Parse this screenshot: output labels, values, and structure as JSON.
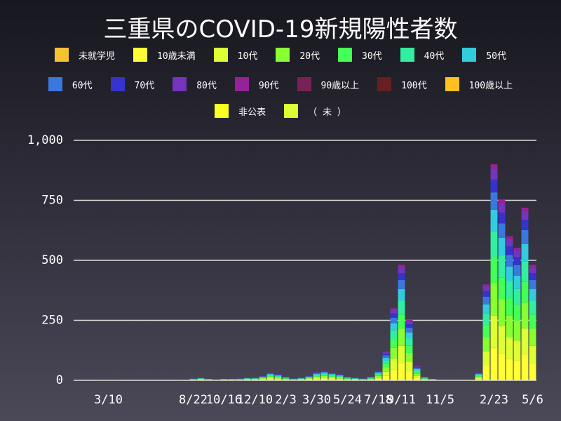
{
  "chart_data": {
    "type": "bar",
    "stacked": true,
    "title": "三重県のCOVID-19新規陽性者数",
    "categories": [
      null,
      null,
      null,
      null,
      "3/10",
      null,
      null,
      null,
      null,
      null,
      null,
      null,
      null,
      null,
      null,
      "8/22",
      null,
      null,
      null,
      "10/16",
      null,
      null,
      null,
      "12/10",
      null,
      null,
      null,
      "2/3",
      null,
      null,
      null,
      "3/30",
      null,
      null,
      null,
      "5/24",
      null,
      null,
      null,
      "7/18",
      null,
      null,
      "9/11",
      null,
      null,
      null,
      null,
      "11/5",
      null,
      null,
      null,
      null,
      null,
      null,
      "2/23",
      null,
      null,
      null,
      null,
      "5/6"
    ],
    "series": [
      {
        "name": "未就学児",
        "color": "#f7c232",
        "values": [
          0,
          0,
          0,
          0,
          0,
          0,
          0,
          0,
          0,
          0,
          0,
          0,
          0,
          0,
          0,
          0,
          0,
          0,
          0,
          0,
          0,
          0,
          0,
          0,
          0,
          0,
          0,
          0,
          0,
          0,
          0,
          0,
          0,
          0,
          0,
          0,
          0,
          0,
          0,
          0,
          0,
          0,
          0,
          0,
          0,
          0,
          0,
          0,
          0,
          0,
          0,
          0,
          0,
          0,
          0,
          0,
          0,
          0,
          0,
          0
        ]
      },
      {
        "name": "10歳未満",
        "color": "#ffff33",
        "values": [
          0,
          0,
          0,
          0,
          0,
          0,
          0,
          0,
          0,
          0,
          0,
          0,
          0,
          0,
          0,
          1,
          2,
          1,
          1,
          1,
          1,
          1,
          2,
          2,
          3,
          5,
          4,
          2,
          1,
          2,
          3,
          5,
          6,
          5,
          4,
          2,
          2,
          1,
          2,
          6,
          18,
          45,
          72,
          38,
          9,
          2,
          1,
          0,
          0,
          0,
          0,
          0,
          5,
          60,
          135,
          113,
          90,
          83,
          108,
          72
        ]
      },
      {
        "name": "10代",
        "color": "#ddff33",
        "values": [
          0,
          0,
          0,
          0,
          0,
          0,
          0,
          0,
          0,
          0,
          0,
          0,
          0,
          0,
          0,
          1,
          2,
          1,
          1,
          1,
          1,
          1,
          2,
          2,
          3,
          5,
          4,
          2,
          1,
          2,
          3,
          5,
          6,
          5,
          4,
          2,
          2,
          1,
          2,
          6,
          18,
          45,
          72,
          38,
          9,
          2,
          1,
          0,
          0,
          0,
          0,
          0,
          5,
          60,
          135,
          113,
          90,
          83,
          108,
          72
        ]
      },
      {
        "name": "20代",
        "color": "#88ff33",
        "values": [
          0,
          0,
          0,
          1,
          2,
          1,
          0,
          0,
          0,
          0,
          0,
          0,
          0,
          0,
          1,
          1,
          2,
          1,
          1,
          1,
          1,
          1,
          2,
          2,
          3,
          5,
          4,
          2,
          1,
          2,
          3,
          5,
          6,
          5,
          4,
          2,
          2,
          1,
          2,
          6,
          18,
          45,
          72,
          38,
          9,
          2,
          1,
          1,
          1,
          1,
          1,
          1,
          5,
          60,
          135,
          113,
          90,
          83,
          108,
          72
        ]
      },
      {
        "name": "30代",
        "color": "#44ff55",
        "values": [
          0,
          0,
          0,
          0,
          0,
          0,
          0,
          0,
          0,
          0,
          0,
          0,
          0,
          0,
          0,
          1,
          1,
          1,
          0,
          1,
          1,
          1,
          1,
          1,
          2,
          4,
          3,
          2,
          1,
          1,
          2,
          4,
          5,
          4,
          3,
          2,
          1,
          1,
          2,
          5,
          14,
          36,
          58,
          30,
          7,
          2,
          1,
          0,
          0,
          0,
          0,
          0,
          4,
          48,
          108,
          90,
          72,
          66,
          86,
          58
        ]
      },
      {
        "name": "40代",
        "color": "#33eea0",
        "values": [
          0,
          0,
          0,
          0,
          0,
          0,
          0,
          0,
          0,
          0,
          0,
          0,
          0,
          0,
          0,
          1,
          1,
          1,
          0,
          1,
          1,
          1,
          1,
          1,
          2,
          4,
          3,
          2,
          1,
          1,
          2,
          4,
          5,
          4,
          3,
          2,
          1,
          1,
          2,
          5,
          14,
          36,
          58,
          30,
          7,
          2,
          1,
          0,
          0,
          0,
          0,
          0,
          4,
          48,
          108,
          90,
          72,
          66,
          86,
          58
        ]
      },
      {
        "name": "50代",
        "color": "#33ccdd",
        "values": [
          0,
          0,
          0,
          0,
          0,
          0,
          0,
          0,
          0,
          0,
          0,
          0,
          0,
          0,
          0,
          1,
          1,
          1,
          0,
          1,
          1,
          1,
          1,
          1,
          2,
          3,
          3,
          2,
          1,
          1,
          2,
          4,
          4,
          3,
          3,
          2,
          1,
          1,
          2,
          4,
          12,
          30,
          48,
          25,
          6,
          2,
          1,
          0,
          0,
          0,
          0,
          0,
          3,
          40,
          90,
          75,
          60,
          55,
          72,
          48
        ]
      },
      {
        "name": "60代",
        "color": "#3a78dd",
        "values": [
          0,
          0,
          0,
          0,
          0,
          0,
          0,
          0,
          0,
          0,
          0,
          0,
          0,
          0,
          0,
          1,
          1,
          0,
          0,
          0,
          0,
          1,
          1,
          1,
          1,
          2,
          2,
          1,
          1,
          1,
          2,
          3,
          3,
          2,
          2,
          1,
          1,
          1,
          1,
          3,
          10,
          24,
          38,
          20,
          5,
          1,
          0,
          0,
          0,
          0,
          0,
          0,
          2,
          32,
          72,
          60,
          48,
          44,
          58,
          38
        ]
      },
      {
        "name": "70代",
        "color": "#3533cc",
        "values": [
          0,
          0,
          0,
          0,
          0,
          0,
          0,
          0,
          0,
          0,
          0,
          0,
          0,
          0,
          0,
          0,
          1,
          0,
          0,
          0,
          0,
          0,
          1,
          1,
          1,
          2,
          2,
          1,
          0,
          1,
          1,
          2,
          2,
          2,
          2,
          1,
          1,
          0,
          1,
          2,
          7,
          18,
          29,
          15,
          4,
          1,
          0,
          0,
          0,
          0,
          0,
          0,
          2,
          24,
          54,
          45,
          36,
          33,
          43,
          29
        ]
      },
      {
        "name": "80代",
        "color": "#7534bb",
        "values": [
          0,
          0,
          0,
          0,
          0,
          0,
          0,
          0,
          0,
          0,
          0,
          0,
          0,
          0,
          0,
          0,
          1,
          0,
          0,
          0,
          0,
          0,
          1,
          1,
          1,
          2,
          1,
          1,
          0,
          1,
          1,
          2,
          2,
          2,
          1,
          1,
          1,
          0,
          1,
          2,
          6,
          15,
          24,
          13,
          3,
          1,
          0,
          0,
          0,
          0,
          0,
          0,
          2,
          20,
          45,
          38,
          30,
          28,
          36,
          24
        ]
      },
      {
        "name": "90代",
        "color": "#962299",
        "values": [
          0,
          0,
          0,
          0,
          0,
          0,
          0,
          0,
          0,
          0,
          0,
          0,
          0,
          0,
          0,
          0,
          0,
          0,
          0,
          0,
          0,
          0,
          0,
          0,
          0,
          0,
          0,
          0,
          0,
          0,
          0,
          1,
          1,
          0,
          0,
          0,
          0,
          0,
          0,
          0,
          2,
          6,
          10,
          5,
          1,
          0,
          0,
          0,
          0,
          0,
          0,
          0,
          1,
          8,
          18,
          15,
          12,
          11,
          14,
          10
        ]
      },
      {
        "name": "90歳以上",
        "color": "#772255",
        "values": [
          0,
          0,
          0,
          0,
          0,
          0,
          0,
          0,
          0,
          0,
          0,
          0,
          0,
          0,
          0,
          0,
          0,
          0,
          0,
          0,
          0,
          0,
          0,
          0,
          0,
          0,
          0,
          0,
          0,
          0,
          0,
          0,
          0,
          0,
          0,
          0,
          0,
          0,
          0,
          0,
          0,
          0,
          0,
          0,
          0,
          0,
          0,
          0,
          0,
          0,
          0,
          0,
          0,
          0,
          0,
          0,
          0,
          0,
          0,
          0
        ]
      },
      {
        "name": "100代",
        "color": "#661f22",
        "values": [
          0,
          0,
          0,
          0,
          0,
          0,
          0,
          0,
          0,
          0,
          0,
          0,
          0,
          0,
          0,
          0,
          0,
          0,
          0,
          0,
          0,
          0,
          0,
          0,
          0,
          0,
          0,
          0,
          0,
          0,
          0,
          0,
          0,
          0,
          0,
          0,
          0,
          0,
          0,
          0,
          0,
          0,
          0,
          0,
          0,
          0,
          0,
          0,
          0,
          0,
          0,
          0,
          0,
          0,
          0,
          0,
          0,
          0,
          0,
          0
        ]
      },
      {
        "name": "100歳以上",
        "color": "#ffc020",
        "values": [
          0,
          0,
          0,
          0,
          0,
          0,
          0,
          0,
          0,
          0,
          0,
          0,
          0,
          0,
          0,
          0,
          0,
          0,
          0,
          0,
          0,
          0,
          0,
          0,
          0,
          0,
          0,
          0,
          0,
          0,
          0,
          0,
          0,
          0,
          0,
          0,
          0,
          0,
          0,
          0,
          0,
          0,
          0,
          0,
          0,
          0,
          0,
          0,
          0,
          0,
          0,
          0,
          0,
          0,
          0,
          0,
          0,
          0,
          0,
          0
        ]
      },
      {
        "name": "非公表",
        "color": "#ffff22",
        "values": [
          0,
          0,
          0,
          0,
          0,
          0,
          0,
          0,
          0,
          0,
          0,
          0,
          0,
          0,
          0,
          0,
          0,
          0,
          0,
          0,
          0,
          0,
          0,
          0,
          0,
          0,
          0,
          0,
          0,
          0,
          0,
          0,
          0,
          0,
          0,
          0,
          0,
          0,
          0,
          0,
          0,
          0,
          0,
          0,
          0,
          0,
          0,
          0,
          0,
          0,
          0,
          0,
          0,
          0,
          0,
          0,
          0,
          0,
          0,
          0
        ]
      },
      {
        "name": "（ 未 ）",
        "color": "#ddff33",
        "values": [
          0,
          0,
          0,
          0,
          0,
          0,
          0,
          0,
          0,
          0,
          0,
          0,
          0,
          0,
          0,
          0,
          0,
          0,
          0,
          0,
          0,
          0,
          0,
          0,
          0,
          0,
          0,
          0,
          0,
          0,
          0,
          0,
          0,
          0,
          0,
          0,
          0,
          0,
          0,
          0,
          0,
          0,
          0,
          0,
          0,
          0,
          0,
          0,
          0,
          0,
          0,
          0,
          0,
          0,
          0,
          0,
          0,
          0,
          0,
          0
        ]
      }
    ],
    "ylim": [
      0,
      1000
    ],
    "yticks": [
      0,
      250,
      500,
      750,
      {
        "value": 1000,
        "label": "1,000"
      }
    ],
    "grid": true
  }
}
